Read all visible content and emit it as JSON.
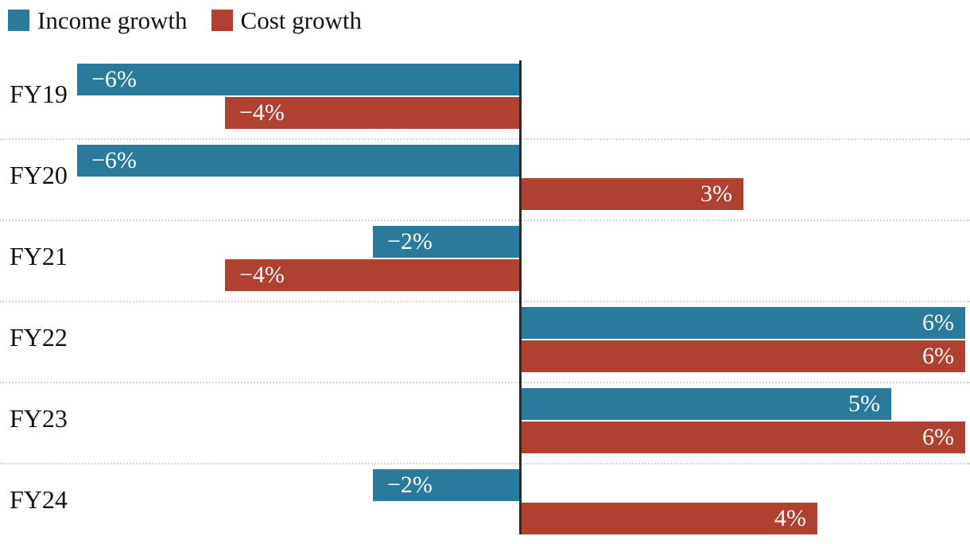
{
  "chart_data": {
    "type": "bar",
    "orientation": "horizontal",
    "title": "",
    "xlabel": "",
    "ylabel": "",
    "xlim": [
      -6,
      6
    ],
    "zero_axis_line": true,
    "grid": "dotted horizontal separators between category groups",
    "legend_position": "top-left",
    "value_label_position": "inside-end",
    "categories": [
      "FY19",
      "FY20",
      "FY21",
      "FY22",
      "FY23",
      "FY24"
    ],
    "series": [
      {
        "name": "Income growth",
        "color": "#2a7b9b",
        "values": [
          -6,
          -6,
          -2,
          6,
          5,
          -2
        ],
        "labels": [
          "−6%",
          "−6%",
          "−2%",
          "6%",
          "5%",
          "−2%"
        ]
      },
      {
        "name": "Cost growth",
        "color": "#b0402f",
        "values": [
          -4,
          3,
          -4,
          6,
          6,
          4
        ],
        "labels": [
          "−4%",
          "3%",
          "−4%",
          "6%",
          "6%",
          "4%"
        ]
      }
    ],
    "colors": {
      "income": "#2a7b9b",
      "cost": "#b0402f",
      "axis_line": "#2b2b2b",
      "separator": "#d4d4d4",
      "text": "#111111",
      "bar_label_text": "#ffffff",
      "background": "#ffffff"
    }
  }
}
